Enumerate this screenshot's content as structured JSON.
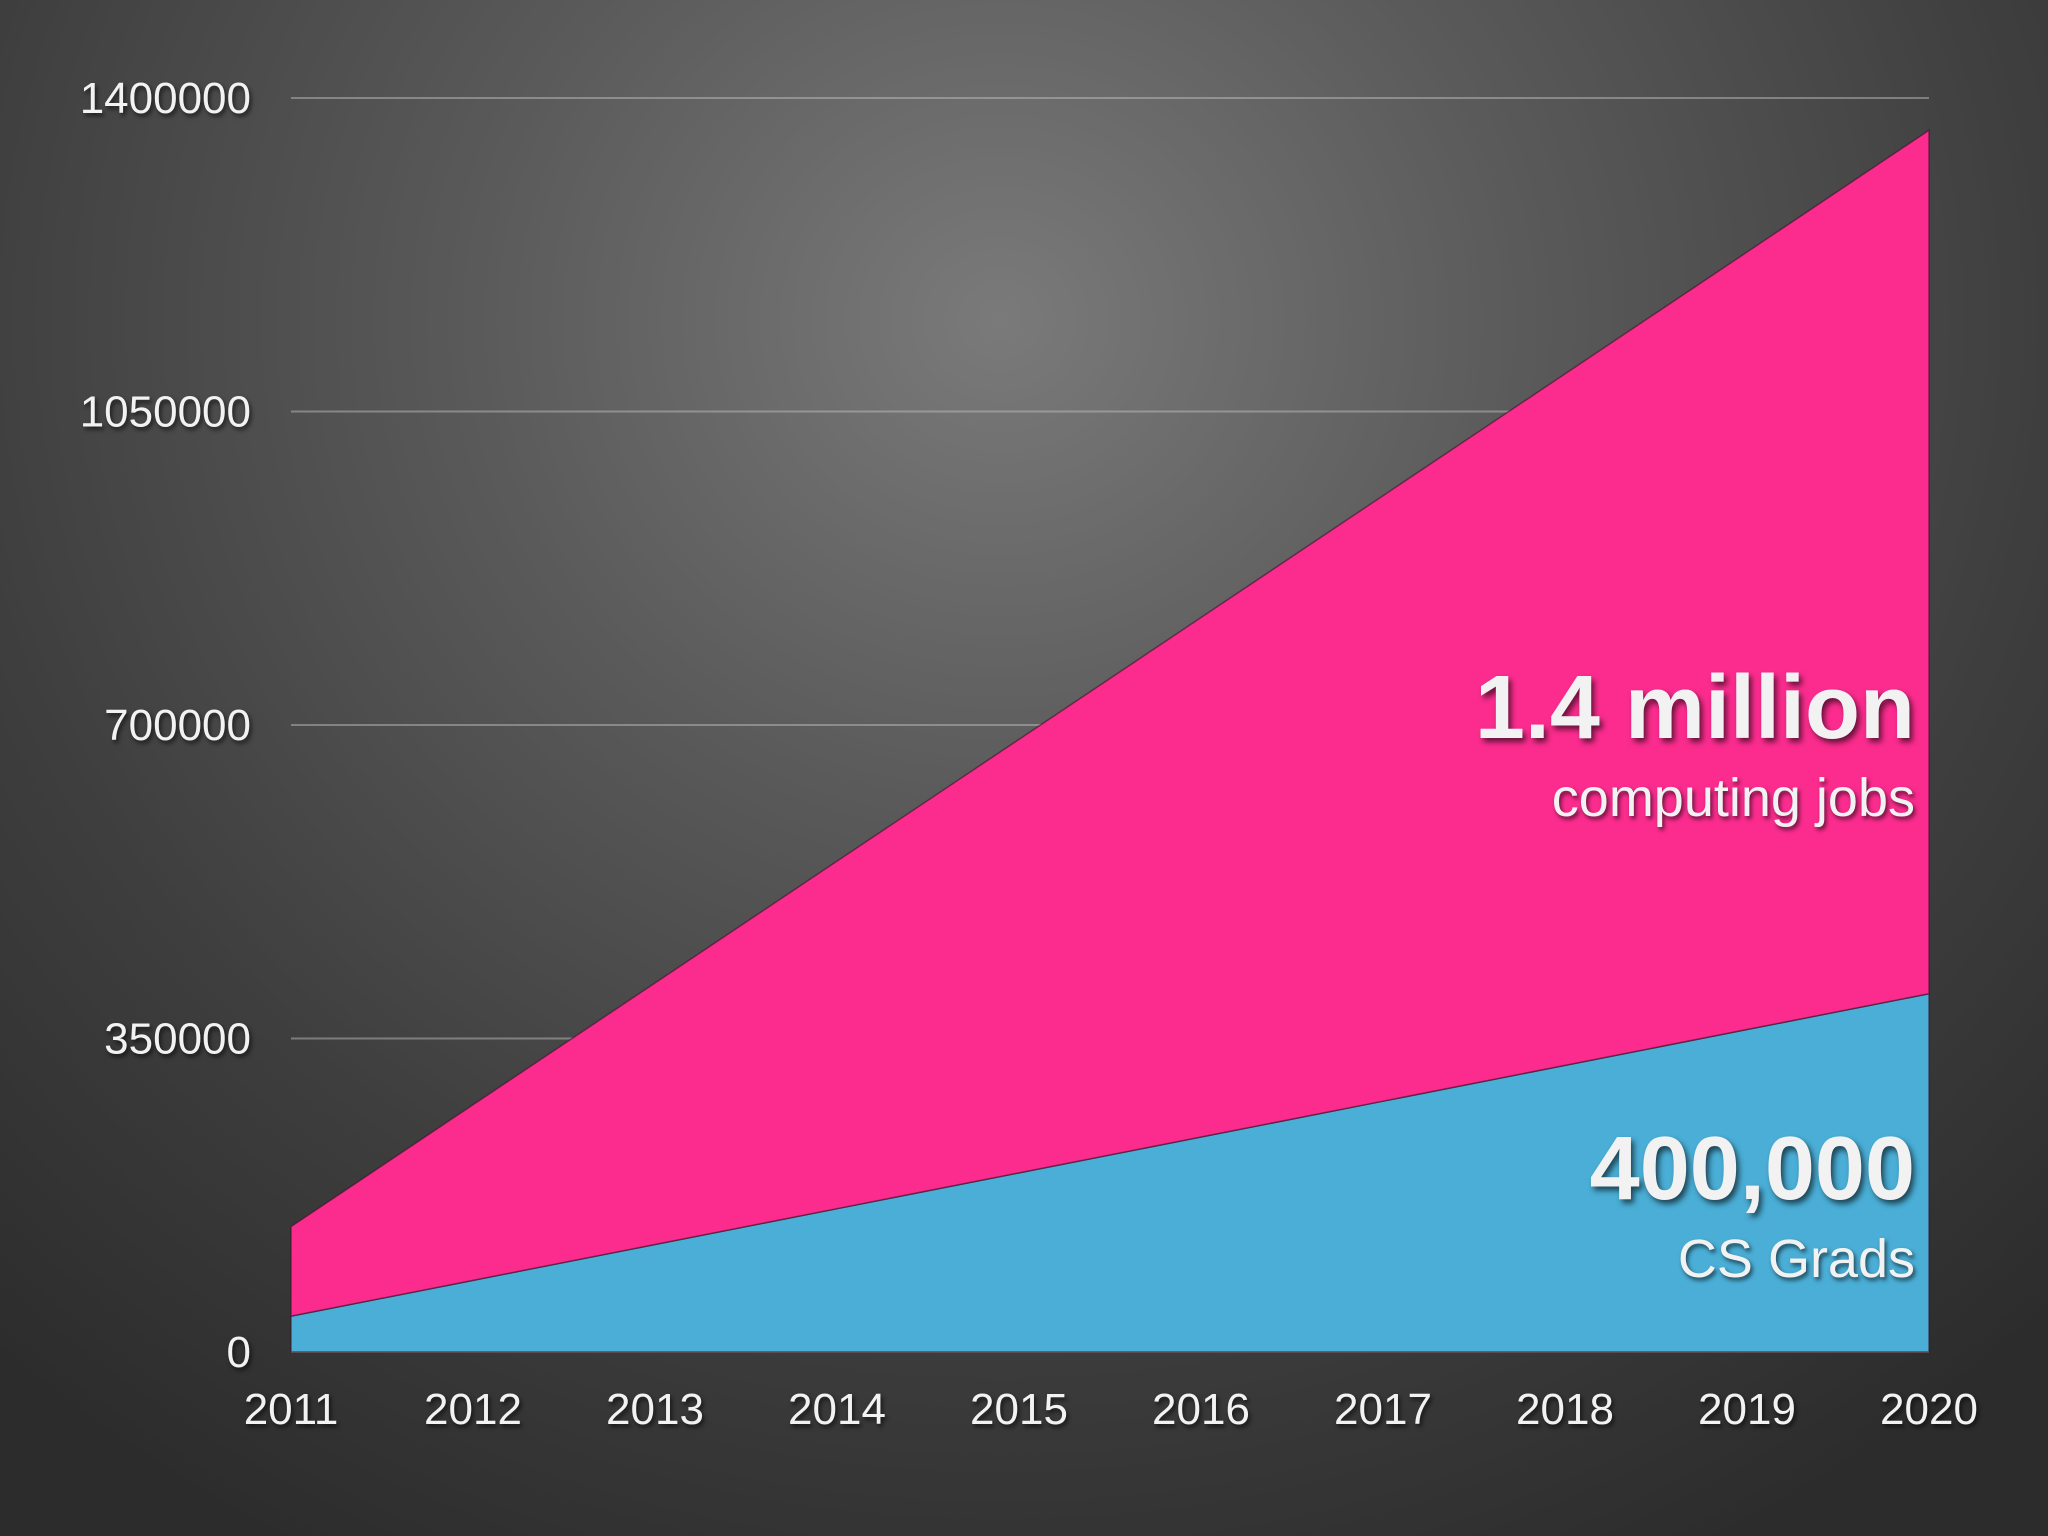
{
  "chart_data": {
    "type": "stacked_area",
    "categories": [
      "2011",
      "2012",
      "2013",
      "2014",
      "2015",
      "2016",
      "2017",
      "2018",
      "2019",
      "2020"
    ],
    "series": [
      {
        "name": "CS Grads",
        "color": "#4aaed6",
        "values": [
          40000,
          80000,
          120000,
          160000,
          200000,
          240000,
          280000,
          320000,
          360000,
          400000
        ]
      },
      {
        "name": "computing jobs",
        "color": "#fb2c8e",
        "values": [
          100000,
          196000,
          292000,
          388000,
          484000,
          580000,
          676000,
          772000,
          868000,
          964000
        ]
      }
    ],
    "ylim": [
      0,
      1400000
    ],
    "yticks": [
      0,
      350000,
      700000,
      1050000,
      1400000
    ],
    "grid": true,
    "annotations": [
      {
        "text": "1.4 million",
        "subtext": "computing jobs"
      },
      {
        "text": "400,000",
        "subtext": "CS Grads"
      }
    ]
  }
}
